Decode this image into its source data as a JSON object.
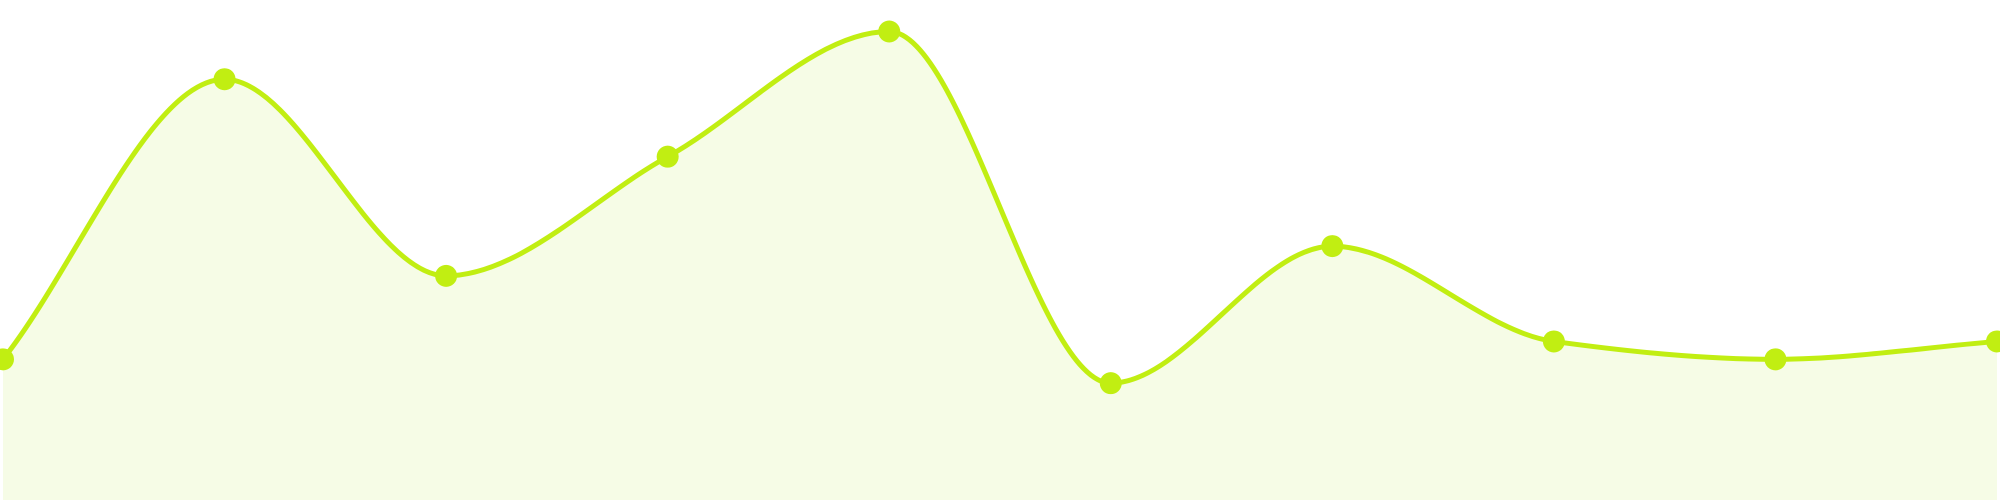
{
  "chart_data": {
    "type": "area",
    "x": [
      0,
      1,
      2,
      3,
      4,
      5,
      6,
      7,
      8,
      9
    ],
    "series": [
      {
        "values": [
          33,
          80,
          47,
          67,
          88,
          29,
          52,
          36,
          33,
          36
        ]
      }
    ],
    "ylim": [
      0,
      100
    ],
    "grid": false,
    "legend": "none",
    "colors": {
      "line": "#c1ee12",
      "fill": "#f6fce6",
      "marker": "#c1ee12"
    }
  }
}
